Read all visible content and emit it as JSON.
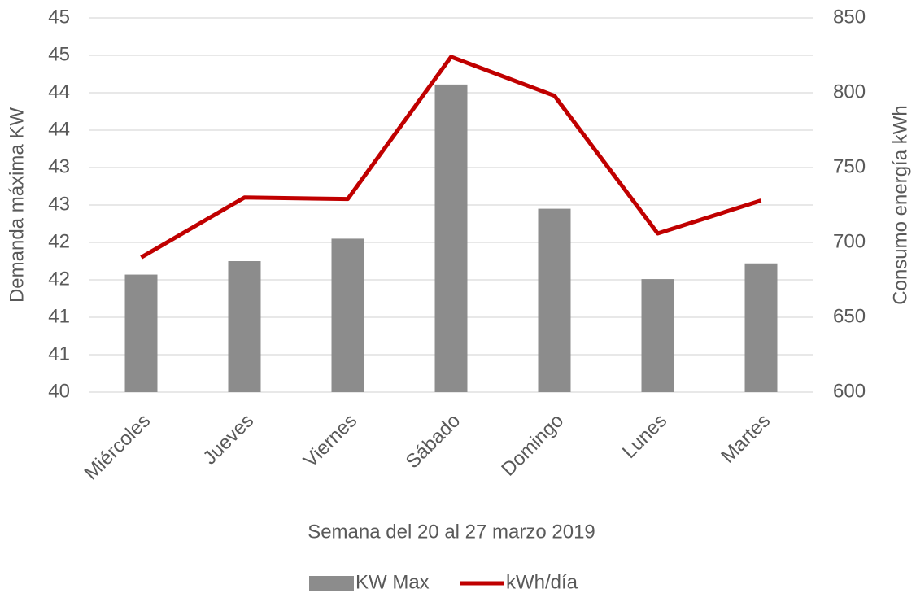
{
  "chart_data": {
    "type": "bar",
    "x_label": "Semana del 20 al 27 marzo 2019",
    "y_label": "Demanda máxima KW",
    "y2_label": "Consumo energía kWh",
    "categories": [
      "Miércoles",
      "Jueves",
      "Viernes",
      "Sábado",
      "Domingo",
      "Lunes",
      "Martes"
    ],
    "series": [
      {
        "name": "KW Max",
        "type": "bar",
        "color": "#8c8c8c",
        "values": [
          41.57,
          41.75,
          42.05,
          44.11,
          42.45,
          41.51,
          41.72
        ]
      },
      {
        "name": "kWh/día",
        "type": "line",
        "axis": "y2",
        "color": "#c00000",
        "values": [
          690,
          730,
          729,
          824,
          798,
          706,
          728
        ]
      }
    ],
    "ylim": [
      40,
      45
    ],
    "yticks": [
      40,
      {
        "value": 40.5,
        "label": "41"
      },
      41,
      {
        "value": 41.5,
        "label": "42"
      },
      42,
      {
        "value": 42.5,
        "label": "43"
      },
      43,
      {
        "value": 43.5,
        "label": "44"
      },
      44,
      {
        "value": 44.5,
        "label": "45"
      },
      45
    ],
    "y2lim": [
      600,
      850
    ],
    "y2ticks": [
      600,
      650,
      700,
      750,
      800,
      850
    ],
    "grid": true,
    "legend": "bottom"
  }
}
